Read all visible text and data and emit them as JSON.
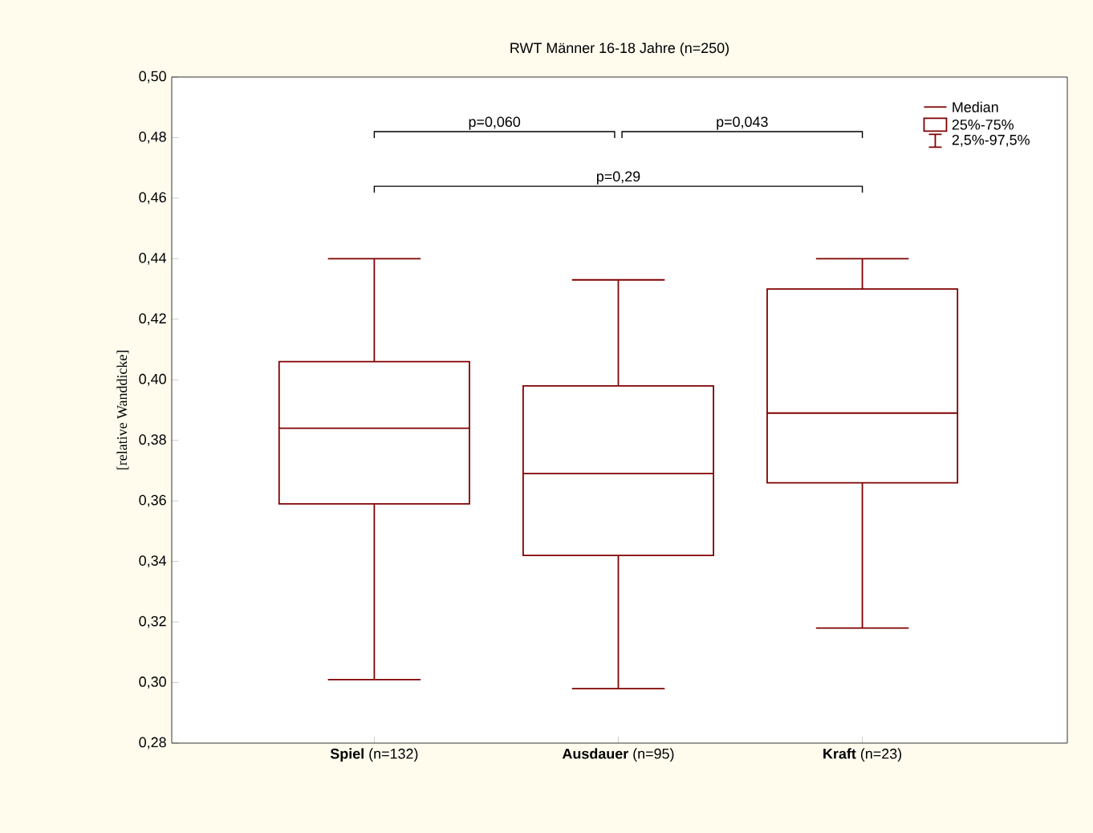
{
  "chart_data": {
    "type": "box",
    "title": "RWT Männer 16-18 Jahre (n=250)",
    "ylabel": "[relative Wanddicke]",
    "categories": [
      "**Spiel** (n=132)",
      "**Ausdauer** (n=95)",
      "**Kraft** (n=23)"
    ],
    "boxes": [
      {
        "low": 0.301,
        "q1": 0.359,
        "median": 0.384,
        "q3": 0.406,
        "high": 0.44
      },
      {
        "low": 0.298,
        "q1": 0.342,
        "median": 0.369,
        "q3": 0.398,
        "high": 0.433
      },
      {
        "low": 0.318,
        "q1": 0.366,
        "median": 0.389,
        "q3": 0.43,
        "high": 0.44
      }
    ],
    "color": "#800000",
    "ylim": [
      0.28,
      0.5
    ],
    "yticks": [
      {
        "value": 0.28,
        "label": "0,28"
      },
      {
        "value": 0.3,
        "label": "0,30"
      },
      {
        "value": 0.32,
        "label": "0,32"
      },
      {
        "value": 0.34,
        "label": "0,34"
      },
      {
        "value": 0.36,
        "label": "0,36"
      },
      {
        "value": 0.38,
        "label": "0,38"
      },
      {
        "value": 0.4,
        "label": "0,40"
      },
      {
        "value": 0.42,
        "label": "0,42"
      },
      {
        "value": 0.44,
        "label": "0,44"
      },
      {
        "value": 0.46,
        "label": "0,46"
      },
      {
        "value": 0.48,
        "label": "0,48"
      },
      {
        "value": 0.5,
        "label": "0,50"
      }
    ],
    "annotations": [
      "p=0,060",
      "p=0,043",
      "p=0,29",
      "Median",
      "25%-75%",
      "2,5%-97,5%"
    ],
    "grid": false
  }
}
